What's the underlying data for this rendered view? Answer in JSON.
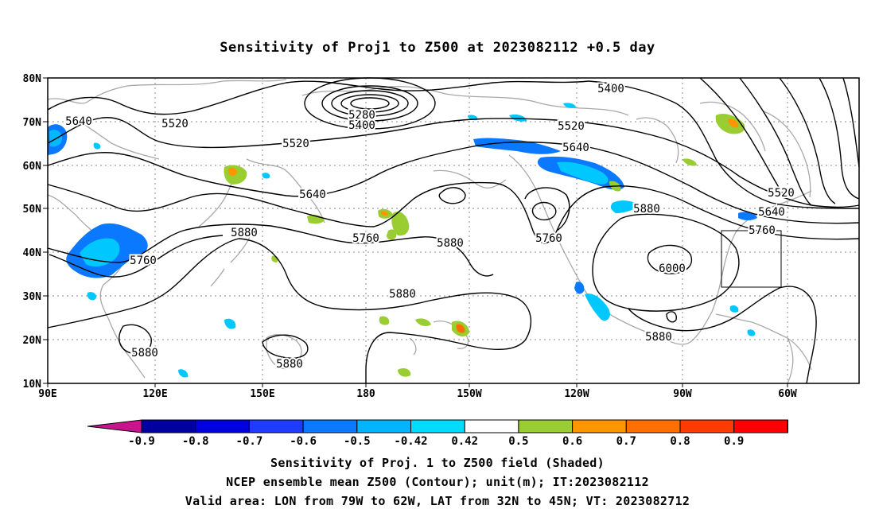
{
  "title": "Sensitivity of Proj1 to Z500 at 2023082112 +0.5 day",
  "map": {
    "lat_labels": [
      "80N",
      "70N",
      "60N",
      "50N",
      "40N",
      "30N",
      "20N",
      "10N"
    ],
    "lon_labels": [
      "90E",
      "120E",
      "150E",
      "180",
      "150W",
      "120W",
      "90W",
      "60W"
    ],
    "contour_labels": [
      {
        "text": "5640"
      },
      {
        "text": "5520"
      },
      {
        "text": "5520"
      },
      {
        "text": "5280"
      },
      {
        "text": "5400"
      },
      {
        "text": "5400"
      },
      {
        "text": "5520"
      },
      {
        "text": "5640"
      },
      {
        "text": "5640"
      },
      {
        "text": "5760"
      },
      {
        "text": "5880"
      },
      {
        "text": "5760"
      },
      {
        "text": "5880"
      },
      {
        "text": "5760"
      },
      {
        "text": "5880"
      },
      {
        "text": "6000"
      },
      {
        "text": "5880"
      },
      {
        "text": "5520"
      },
      {
        "text": "5640"
      },
      {
        "text": "5760"
      },
      {
        "text": "5880"
      },
      {
        "text": "5880"
      },
      {
        "text": "5880"
      }
    ],
    "valid_area": {
      "lon_from": "79W",
      "lon_to": "62W",
      "lat_from": "32N",
      "lat_to": "45N"
    },
    "colors": {
      "contour": "#000000",
      "coast": "#a8a8a8",
      "grid": "#888888",
      "neg_light": "#00c8ff",
      "neg_mid": "#0a78ff",
      "pos_green": "#9acd32",
      "pos_orange": "#ff9600",
      "pos_red": "#ff3c00"
    }
  },
  "colorbar": {
    "labels": [
      "-0.9",
      "-0.8",
      "-0.7",
      "-0.6",
      "-0.5",
      "-0.42",
      "0.42",
      "0.5",
      "0.6",
      "0.7",
      "0.8",
      "0.9"
    ],
    "colors": [
      "#c8148c",
      "#0000a0",
      "#0000e0",
      "#1e3cff",
      "#0a78ff",
      "#00b4ff",
      "#00dcff",
      "#ffffff",
      "#9acd32",
      "#ff9600",
      "#ff6e00",
      "#ff3c00",
      "#ff0000",
      "#ff96c8"
    ]
  },
  "captions": {
    "line1": "Sensitivity of Proj. 1 to Z500 field (Shaded)",
    "line2": "NCEP ensemble mean Z500 (Contour); unit(m); IT:2023082112",
    "line3": "Valid area: LON from 79W to 62W, LAT from 32N to 45N; VT: 2023082712"
  }
}
